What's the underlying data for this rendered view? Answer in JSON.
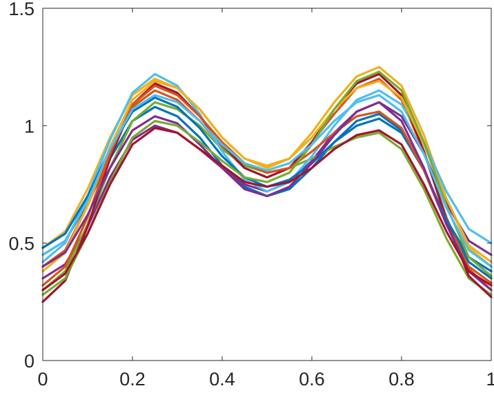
{
  "chart_data": {
    "type": "line",
    "x": [
      0,
      0.05,
      0.1,
      0.15,
      0.2,
      0.25,
      0.3,
      0.35,
      0.4,
      0.45,
      0.5,
      0.55,
      0.6,
      0.65,
      0.7,
      0.75,
      0.8,
      0.85,
      0.9,
      0.95,
      1
    ],
    "xlim": [
      0,
      1
    ],
    "xticks": [
      0,
      0.2,
      0.4,
      0.6,
      0.8,
      1
    ],
    "ylim": [
      0,
      1.5
    ],
    "yticks": [
      0,
      0.5,
      1,
      1.5
    ],
    "grid": false,
    "series": [
      {
        "color": "#0072BD",
        "values": [
          0.45,
          0.51,
          0.67,
          0.86,
          1.02,
          1.08,
          1.04,
          0.95,
          0.83,
          0.74,
          0.7,
          0.73,
          0.82,
          0.93,
          1.02,
          1.05,
          0.98,
          0.81,
          0.59,
          0.42,
          0.35
        ]
      },
      {
        "color": "#D95319",
        "values": [
          0.4,
          0.47,
          0.66,
          0.89,
          1.08,
          1.15,
          1.11,
          1.02,
          0.91,
          0.82,
          0.78,
          0.82,
          0.93,
          1.05,
          1.16,
          1.2,
          1.11,
          0.89,
          0.61,
          0.39,
          0.3
        ]
      },
      {
        "color": "#EDB120",
        "values": [
          0.48,
          0.55,
          0.73,
          0.95,
          1.13,
          1.2,
          1.16,
          1.07,
          0.95,
          0.86,
          0.82,
          0.86,
          0.97,
          1.1,
          1.21,
          1.25,
          1.17,
          0.96,
          0.69,
          0.48,
          0.4
        ]
      },
      {
        "color": "#7E2F8E",
        "values": [
          0.35,
          0.41,
          0.57,
          0.78,
          0.94,
          1.0,
          0.97,
          0.9,
          0.82,
          0.75,
          0.72,
          0.76,
          0.85,
          0.97,
          1.06,
          1.1,
          1.04,
          0.88,
          0.67,
          0.51,
          0.45
        ]
      },
      {
        "color": "#77AC30",
        "values": [
          0.3,
          0.38,
          0.58,
          0.82,
          1.02,
          1.1,
          1.07,
          1.0,
          0.9,
          0.83,
          0.8,
          0.82,
          0.86,
          0.91,
          0.95,
          0.97,
          0.9,
          0.73,
          0.52,
          0.35,
          0.28
        ]
      },
      {
        "color": "#4DBEEE",
        "values": [
          0.42,
          0.5,
          0.7,
          0.94,
          1.14,
          1.22,
          1.17,
          1.05,
          0.89,
          0.77,
          0.72,
          0.76,
          0.87,
          1.0,
          1.11,
          1.15,
          1.09,
          0.93,
          0.72,
          0.56,
          0.5
        ]
      },
      {
        "color": "#A2142F",
        "values": [
          0.25,
          0.34,
          0.57,
          0.86,
          1.09,
          1.18,
          1.14,
          1.04,
          0.92,
          0.82,
          0.78,
          0.82,
          0.93,
          1.07,
          1.18,
          1.22,
          1.13,
          0.89,
          0.6,
          0.36,
          0.27
        ]
      },
      {
        "color": "#0072BD",
        "values": [
          0.48,
          0.54,
          0.7,
          0.9,
          1.06,
          1.12,
          1.08,
          0.99,
          0.87,
          0.78,
          0.74,
          0.77,
          0.84,
          0.93,
          1.0,
          1.03,
          0.97,
          0.81,
          0.6,
          0.44,
          0.38
        ]
      },
      {
        "color": "#D95319",
        "values": [
          0.32,
          0.4,
          0.61,
          0.88,
          1.09,
          1.17,
          1.13,
          1.04,
          0.93,
          0.84,
          0.8,
          0.82,
          0.89,
          0.97,
          1.04,
          1.06,
          0.99,
          0.81,
          0.58,
          0.4,
          0.33
        ]
      },
      {
        "color": "#EDB120",
        "values": [
          0.38,
          0.46,
          0.66,
          0.91,
          1.11,
          1.19,
          1.16,
          1.07,
          0.95,
          0.86,
          0.83,
          0.86,
          0.95,
          1.07,
          1.16,
          1.19,
          1.12,
          0.92,
          0.69,
          0.49,
          0.42
        ]
      },
      {
        "color": "#7E2F8E",
        "values": [
          0.4,
          0.46,
          0.62,
          0.82,
          0.98,
          1.04,
          1.01,
          0.92,
          0.82,
          0.73,
          0.7,
          0.74,
          0.84,
          0.96,
          1.06,
          1.1,
          1.02,
          0.82,
          0.58,
          0.38,
          0.3
        ]
      },
      {
        "color": "#77AC30",
        "values": [
          0.28,
          0.35,
          0.54,
          0.76,
          0.95,
          1.02,
          1.0,
          0.93,
          0.85,
          0.78,
          0.76,
          0.8,
          0.92,
          1.07,
          1.19,
          1.23,
          1.15,
          0.93,
          0.66,
          0.44,
          0.36
        ]
      },
      {
        "color": "#4DBEEE",
        "values": [
          0.45,
          0.51,
          0.68,
          0.9,
          1.07,
          1.13,
          1.1,
          1.02,
          0.92,
          0.84,
          0.81,
          0.84,
          0.92,
          1.02,
          1.1,
          1.13,
          1.06,
          0.88,
          0.65,
          0.47,
          0.4
        ]
      },
      {
        "color": "#A2142F",
        "values": [
          0.3,
          0.37,
          0.54,
          0.75,
          0.92,
          0.99,
          0.97,
          0.9,
          0.83,
          0.76,
          0.74,
          0.76,
          0.82,
          0.9,
          0.96,
          0.98,
          0.92,
          0.75,
          0.55,
          0.38,
          0.32
        ]
      }
    ]
  }
}
